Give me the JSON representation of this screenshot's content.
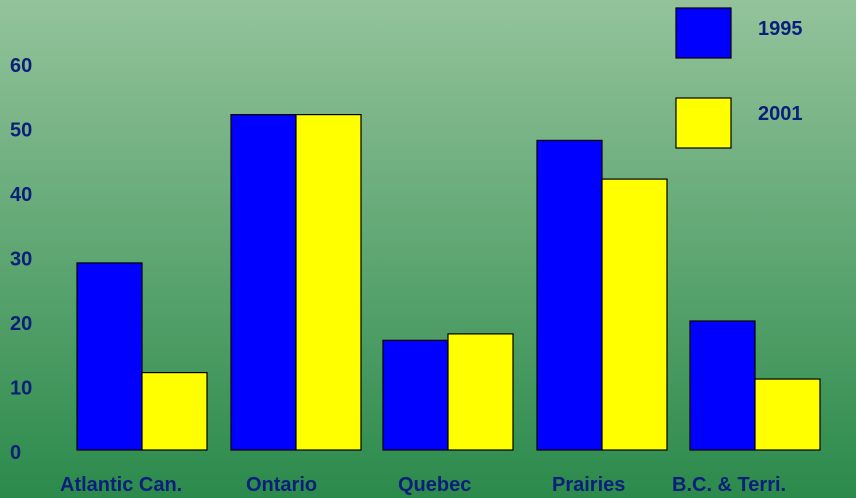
{
  "chart_data": {
    "type": "bar",
    "title": "",
    "xlabel": "",
    "ylabel": "",
    "ylim": [
      0,
      65
    ],
    "yticks": [
      0,
      10,
      20,
      30,
      40,
      50,
      60
    ],
    "categories": [
      "Atlantic Can.",
      "Ontario",
      "Quebec",
      "Prairies",
      "B.C. & Terri."
    ],
    "series": [
      {
        "name": "1995",
        "color": "#0000ff",
        "values": [
          29,
          52,
          17,
          48,
          20
        ]
      },
      {
        "name": "2001",
        "color": "#ffff00",
        "values": [
          12,
          52,
          18,
          42,
          11
        ]
      }
    ],
    "grid": false,
    "legend": {
      "position": "top-right"
    },
    "background": {
      "top": "#94c39b",
      "bottom": "#2b8a4b"
    },
    "text_color": "#0a1f7a"
  }
}
